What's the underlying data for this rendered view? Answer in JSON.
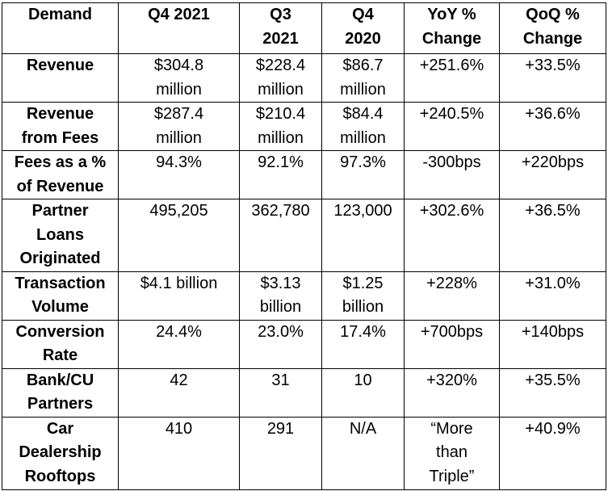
{
  "table": {
    "headers": [
      "Demand",
      "Q4 2021",
      "Q3\n2021",
      "Q4\n2020",
      "YoY %\nChange",
      "QoQ %\nChange"
    ],
    "rows": [
      [
        "Revenue",
        "$304.8\nmillion",
        "$228.4\nmillion",
        "$86.7\nmillion",
        "+251.6%",
        "+33.5%"
      ],
      [
        "Revenue\nfrom Fees",
        "$287.4\nmillion",
        "$210.4\nmillion",
        "$84.4\nmillion",
        "+240.5%",
        "+36.6%"
      ],
      [
        "Fees as a %\nof Revenue",
        "94.3%",
        "92.1%",
        "97.3%",
        "-300bps",
        "+220bps"
      ],
      [
        "Partner\nLoans\nOriginated",
        "495,205",
        "362,780",
        "123,000",
        "+302.6%",
        "+36.5%"
      ],
      [
        "Transaction\nVolume",
        "$4.1 billion",
        "$3.13\nbillion",
        "$1.25\nbillion",
        "+228%",
        "+31.0%"
      ],
      [
        "Conversion\nRate",
        "24.4%",
        "23.0%",
        "17.4%",
        "+700bps",
        "+140bps"
      ],
      [
        "Bank/CU\nPartners",
        "42",
        "31",
        "10",
        "+320%",
        "+35.5%"
      ],
      [
        "Car\nDealership\nRooftops",
        "410",
        "291",
        "N/A",
        "“More\nthan\nTriple”",
        "+40.9%"
      ]
    ]
  }
}
